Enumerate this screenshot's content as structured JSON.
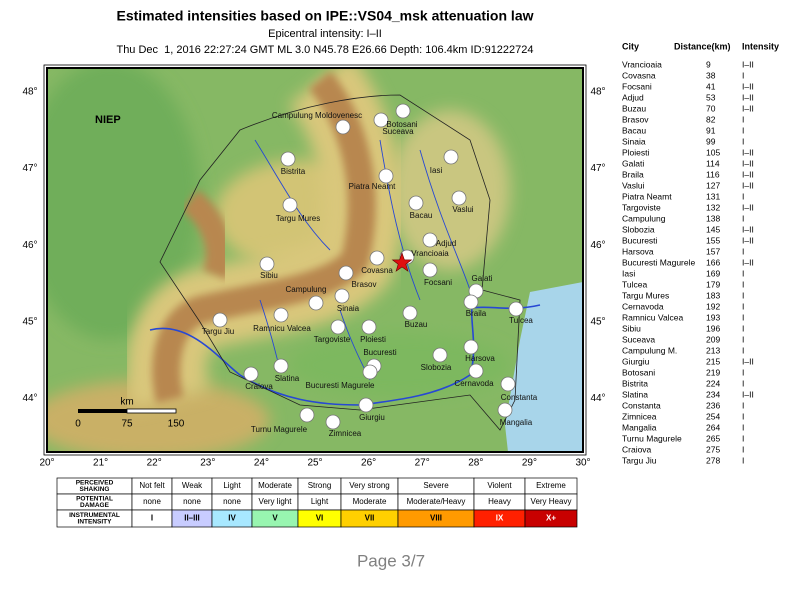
{
  "header": {
    "title": "Estimated intensities based on IPE::VS04_msk attenuation law",
    "subtitle": "Epicentral intensity: I–II",
    "event": "Thu Dec  1, 2016 22:27:24 GMT ML 3.0 N45.78 E26.66 Depth: 106.4km ID:91222724"
  },
  "map": {
    "institute": "NIEP",
    "labels": [
      "Campulung Moldovenesc",
      "Botosani",
      "Suceava",
      "Bistrita",
      "Iasi",
      "Piatra Neamt",
      "Targu Mures",
      "Bacau",
      "Vaslui",
      "Adjud",
      "Vrancioaia",
      "Sibiu",
      "Covasna",
      "Focsani",
      "Brasov",
      "Galati",
      "Campulung",
      "Sinaia",
      "Braila",
      "Tulcea",
      "Targu Jiu",
      "Ramnicu Valcea",
      "Targoviste",
      "Ploiesti",
      "Buzau",
      "Bucuresti",
      "Slobozia",
      "Harsova",
      "Cernavoda",
      "Bucuresti Magurele",
      "Craiova",
      "Slatina",
      "Constanta",
      "Giurgiu",
      "Mangalia",
      "Turnu Magurele",
      "Zimnicea"
    ],
    "lon_ticks": [
      "20°",
      "21°",
      "22°",
      "23°",
      "24°",
      "25°",
      "26°",
      "27°",
      "28°",
      "29°",
      "30°"
    ],
    "lat_ticks": [
      "48°",
      "47°",
      "46°",
      "45°",
      "44°"
    ],
    "scale": {
      "unit": "km",
      "ticks": [
        0,
        75,
        150
      ]
    }
  },
  "city_table": {
    "columns": [
      "City",
      "Distance(km)",
      "Intensity"
    ],
    "rows": [
      [
        "Vrancioaia",
        9,
        "I–II"
      ],
      [
        "Covasna",
        38,
        "I"
      ],
      [
        "Focsani",
        41,
        "I–II"
      ],
      [
        "Adjud",
        53,
        "I–II"
      ],
      [
        "Buzau",
        70,
        "I–II"
      ],
      [
        "Brasov",
        82,
        "I"
      ],
      [
        "Bacau",
        91,
        "I"
      ],
      [
        "Sinaia",
        99,
        "I"
      ],
      [
        "Ploiesti",
        105,
        "I–II"
      ],
      [
        "Galati",
        114,
        "I–II"
      ],
      [
        "Braila",
        116,
        "I–II"
      ],
      [
        "Vaslui",
        127,
        "I–II"
      ],
      [
        "Piatra Neamt",
        131,
        "I"
      ],
      [
        "Targoviste",
        132,
        "I–II"
      ],
      [
        "Campulung",
        138,
        "I"
      ],
      [
        "Slobozia",
        145,
        "I–II"
      ],
      [
        "Bucuresti",
        155,
        "I–II"
      ],
      [
        "Harsova",
        157,
        "I"
      ],
      [
        "Bucuresti Magurele",
        166,
        "I–II"
      ],
      [
        "Iasi",
        169,
        "I"
      ],
      [
        "Tulcea",
        179,
        "I"
      ],
      [
        "Targu Mures",
        183,
        "I"
      ],
      [
        "Cernavoda",
        192,
        "I"
      ],
      [
        "Ramnicu Valcea",
        193,
        "I"
      ],
      [
        "Sibiu",
        196,
        "I"
      ],
      [
        "Suceava",
        209,
        "I"
      ],
      [
        "Campulung M.",
        213,
        "I"
      ],
      [
        "Giurgiu",
        215,
        "I–II"
      ],
      [
        "Botosani",
        219,
        "I"
      ],
      [
        "Bistrita",
        224,
        "I"
      ],
      [
        "Slatina",
        234,
        "I–II"
      ],
      [
        "Constanta",
        236,
        "I"
      ],
      [
        "Zimnicea",
        254,
        "I"
      ],
      [
        "Mangalia",
        264,
        "I"
      ],
      [
        "Turnu Magurele",
        265,
        "I"
      ],
      [
        "Craiova",
        275,
        "I"
      ],
      [
        "Targu Jiu",
        278,
        "I"
      ]
    ]
  },
  "legend": {
    "rows": [
      {
        "header": [
          "PERCEIVED",
          "SHAKING"
        ],
        "cells": [
          "Not felt",
          "Weak",
          "Light",
          "Moderate",
          "Strong",
          "Very strong",
          "Severe",
          "Violent",
          "Extreme"
        ]
      },
      {
        "header": [
          "POTENTIAL",
          "DAMAGE"
        ],
        "cells": [
          "none",
          "none",
          "none",
          "Very light",
          "Light",
          "Moderate",
          "Moderate/Heavy",
          "Heavy",
          "Very Heavy"
        ]
      },
      {
        "header": [
          "INSTRUMENTAL",
          "INTENSITY"
        ],
        "cells": [
          "I",
          "II–III",
          "IV",
          "V",
          "VI",
          "VII",
          "VIII",
          "IX",
          "X+"
        ]
      }
    ],
    "intensity_colors": [
      "#ffffff",
      "#c8ccff",
      "#a8e8ff",
      "#98f5b0",
      "#ffff00",
      "#ffd000",
      "#ff9a00",
      "#ff2000",
      "#c80000"
    ]
  },
  "footer": "Page 3/7"
}
